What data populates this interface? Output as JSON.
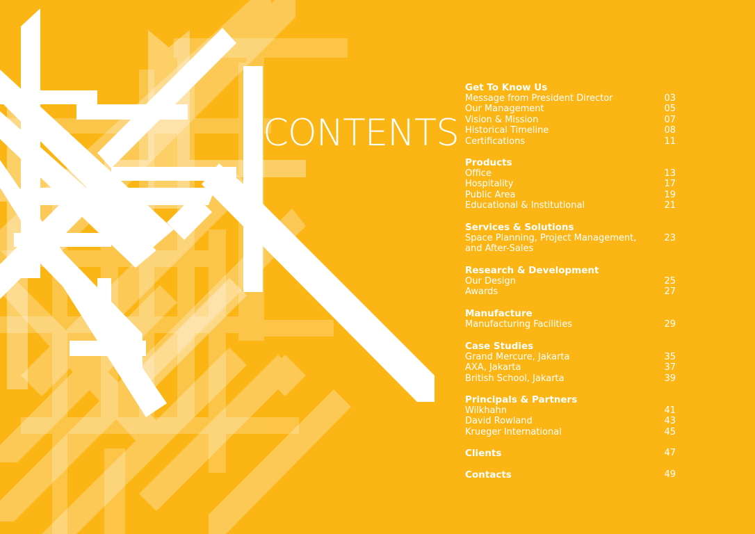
{
  "title": "CONTENTS",
  "sections": [
    {
      "title": "Get To Know Us",
      "page": "",
      "items": [
        {
          "label": "Message from President Director",
          "page": "03"
        },
        {
          "label": "Our Management",
          "page": "05"
        },
        {
          "label": "Vision & Mission",
          "page": "07"
        },
        {
          "label": "Historical Timeline",
          "page": "08"
        },
        {
          "label": "Certifications",
          "page": "11"
        }
      ]
    },
    {
      "title": "Products",
      "page": "",
      "items": [
        {
          "label": "Office",
          "page": "13"
        },
        {
          "label": "Hospitality",
          "page": "17"
        },
        {
          "label": "Public Area",
          "page": "19"
        },
        {
          "label": "Educational & Institutional",
          "page": "21"
        }
      ]
    },
    {
      "title": "Services & Solutions",
      "page": "",
      "items": [
        {
          "label": "Space Planning, Project Management,\nand After-Sales",
          "page": "23"
        }
      ]
    },
    {
      "title": "Research & Development",
      "page": "",
      "items": [
        {
          "label": "Our Design",
          "page": "25"
        },
        {
          "label": "Awards",
          "page": "27"
        }
      ]
    },
    {
      "title": "Manufacture",
      "page": "",
      "items": [
        {
          "label": "Manufacturing Facilities",
          "page": "29"
        }
      ]
    },
    {
      "title": "Case Studies",
      "page": "",
      "items": [
        {
          "label": "Grand Mercure, Jakarta",
          "page": "35"
        },
        {
          "label": "AXA, Jakarta",
          "page": "37"
        },
        {
          "label": "British School, Jakarta",
          "page": "39"
        }
      ]
    },
    {
      "title": "Principals & Partners",
      "page": "",
      "items": [
        {
          "label": "Wilkhahn",
          "page": "41"
        },
        {
          "label": "David Rowland",
          "page": "43"
        },
        {
          "label": "Krueger International",
          "page": "45"
        }
      ]
    },
    {
      "title": "Clients",
      "page": "47",
      "items": []
    },
    {
      "title": "Contacts",
      "page": "49",
      "items": []
    }
  ],
  "colors": {
    "background": "#FBB515",
    "text": "#FFFFFF"
  }
}
